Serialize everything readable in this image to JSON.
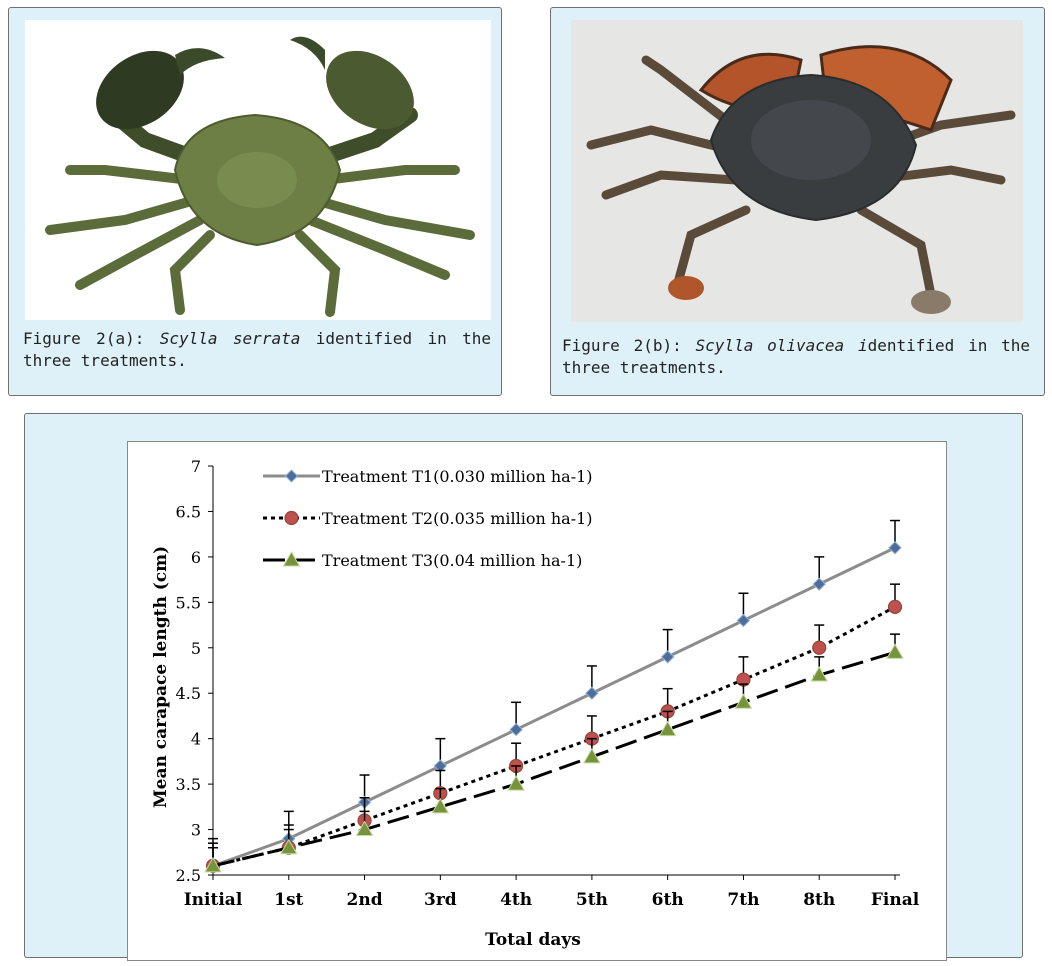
{
  "figure_a": {
    "caption_prefix": "Figure 2(a): ",
    "caption_species": "Scylla serrata",
    "caption_suffix": " identified in the three treatments."
  },
  "figure_b": {
    "caption_prefix": "Figure 2(b): ",
    "caption_species": "Scylla olivacea i",
    "caption_suffix": "dentified in the three treatments."
  },
  "colors": {
    "panel_bg": "#dff1f8",
    "t1_line": "#8c8c8c",
    "t1_marker": "#4f6d9a",
    "t2_marker": "#c0504d",
    "t3_marker": "#77933c"
  },
  "chart_data": {
    "type": "line",
    "xlabel": "Total days",
    "ylabel": "Mean carapace length (cm)",
    "categories": [
      "Initial",
      "1st",
      "2nd",
      "3rd",
      "4th",
      "5th",
      "6th",
      "7th",
      "8th",
      "Final"
    ],
    "ylim": [
      2.5,
      7
    ],
    "yticks": [
      "2.5",
      "3",
      "3.5",
      "4",
      "4.5",
      "5",
      "5.5",
      "6",
      "6.5",
      "7"
    ],
    "legend_position": "top-left",
    "series": [
      {
        "name": "Treatment T1(0.030 million ha-1)",
        "style": "solid",
        "marker": "diamond",
        "values": [
          2.6,
          2.9,
          3.3,
          3.7,
          4.1,
          4.5,
          4.9,
          5.3,
          5.7,
          6.1
        ],
        "errors": [
          0.3,
          0.3,
          0.3,
          0.3,
          0.3,
          0.3,
          0.3,
          0.3,
          0.3,
          0.3
        ]
      },
      {
        "name": "Treatment T2(0.035 million ha-1)",
        "style": "dotted",
        "marker": "circle",
        "values": [
          2.6,
          2.8,
          3.1,
          3.4,
          3.7,
          4.0,
          4.3,
          4.65,
          5.0,
          5.45
        ],
        "errors": [
          0.25,
          0.25,
          0.25,
          0.25,
          0.25,
          0.25,
          0.25,
          0.25,
          0.25,
          0.25
        ]
      },
      {
        "name": "Treatment T3(0.04 million ha-1)",
        "style": "dashed",
        "marker": "triangle",
        "values": [
          2.6,
          2.8,
          3.0,
          3.25,
          3.5,
          3.8,
          4.1,
          4.4,
          4.7,
          4.95
        ],
        "errors": [
          0.2,
          0.2,
          0.2,
          0.2,
          0.2,
          0.2,
          0.2,
          0.2,
          0.2,
          0.2
        ]
      }
    ]
  }
}
